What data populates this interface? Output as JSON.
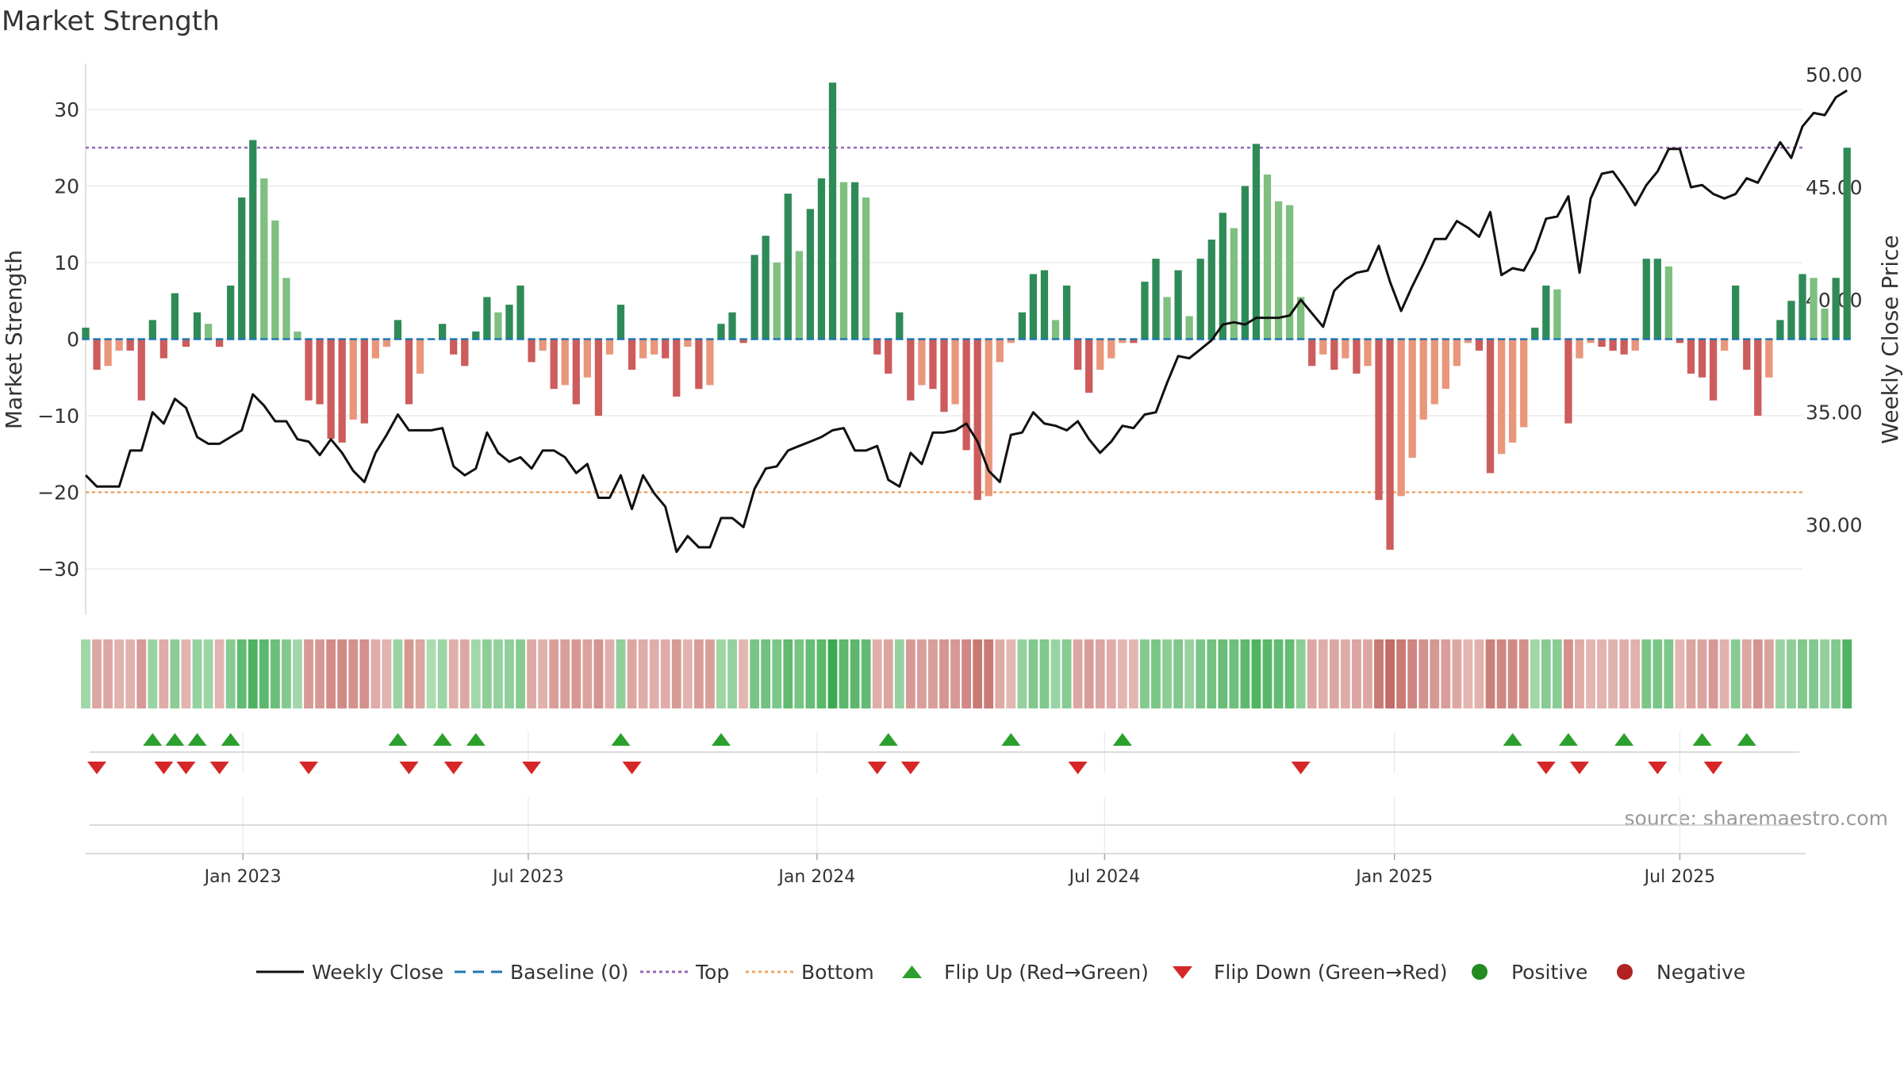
{
  "chart_data": {
    "type": "bar",
    "title": "Market Strength",
    "ylabel": "Market Strength",
    "y2label": "Weekly Close Price",
    "ylim": [
      -36,
      36
    ],
    "y2lim": [
      26.0,
      50.5
    ],
    "yticks": [
      30,
      20,
      10,
      0,
      -10,
      -20,
      -30
    ],
    "yticklabels": [
      "30",
      "20",
      "10",
      "0",
      "−10",
      "−20",
      "−30"
    ],
    "y2ticks": [
      50,
      45,
      40,
      35,
      30
    ],
    "y2ticklabels": [
      "50.00",
      "45.00",
      "40.00",
      "35.00",
      "30.00"
    ],
    "xdomain": [
      0,
      154
    ],
    "xticks": [
      14.1,
      39.7,
      65.6,
      91.4,
      117.4,
      143.0
    ],
    "xticklabels": [
      "Jan 2023",
      "Jul 2023",
      "Jan 2024",
      "Jul 2024",
      "Jan 2025",
      "Jul 2025"
    ],
    "top_line": 25,
    "bottom_line": -20,
    "source_text": "source: sharemaestro.com",
    "series": [
      {
        "name": "Market Strength",
        "values": [
          1.5,
          -4,
          -3.5,
          -1.5,
          -1.5,
          -8,
          2.5,
          -2.5,
          6,
          -1,
          3.5,
          2,
          -1,
          7,
          18.5,
          26,
          21,
          15.5,
          8,
          1,
          -8,
          -8.5,
          -13,
          -13.5,
          -10.5,
          -11,
          -2.5,
          -1,
          2.5,
          -8.5,
          -4.5,
          0,
          2,
          -2,
          -3.5,
          1,
          5.5,
          3.5,
          4.5,
          7,
          -3,
          -1.5,
          -6.5,
          -6,
          -8.5,
          -5,
          -10,
          -2,
          4.5,
          -4,
          -2.5,
          -2,
          -2.5,
          -7.5,
          -1,
          -6.5,
          -6,
          2,
          3.5,
          -0.5,
          11,
          13.5,
          10,
          19,
          11.5,
          17,
          21,
          33.5,
          20.5,
          20.5,
          18.5,
          -2,
          -4.5,
          3.5,
          -8,
          -6,
          -6.5,
          -9.5,
          -8.5,
          -14.5,
          -21,
          -20.5,
          -3,
          -0.5,
          3.5,
          8.5,
          9,
          2.5,
          7,
          -4,
          -7,
          -4,
          -2.5,
          -0.5,
          -0.5,
          7.5,
          10.5,
          5.5,
          9,
          3,
          10.5,
          13,
          16.5,
          14.5,
          20,
          25.5,
          21.5,
          18,
          17.5,
          5.5,
          -3.5,
          -2,
          -4,
          -2.5,
          -4.5,
          -3.5,
          -21,
          -27.5,
          -20.5,
          -15.5,
          -10.5,
          -8.5,
          -6.5,
          -3.5,
          -0.5,
          -1.5,
          -17.5,
          -15,
          -13.5,
          -11.5,
          1.5,
          7,
          6.5,
          -11,
          -2.5,
          -0.5,
          -1,
          -1.5,
          -2,
          -1.5,
          10.5,
          10.5,
          9.5,
          -0.5,
          -4.5,
          -5,
          -8,
          -1.5,
          7,
          -4,
          -10,
          -5,
          2.5,
          5,
          8.5,
          8,
          4,
          8,
          25
        ]
      },
      {
        "name": "Weekly Close",
        "values": [
          32.2,
          31.7,
          31.7,
          31.7,
          33.3,
          33.3,
          35.0,
          34.5,
          35.6,
          35.2,
          33.9,
          33.6,
          33.6,
          33.9,
          34.2,
          35.8,
          35.3,
          34.6,
          34.6,
          33.8,
          33.7,
          33.1,
          33.8,
          33.2,
          32.4,
          31.9,
          33.2,
          34.0,
          34.9,
          34.2,
          34.2,
          34.2,
          34.3,
          32.6,
          32.2,
          32.5,
          34.1,
          33.2,
          32.8,
          33.0,
          32.5,
          33.3,
          33.3,
          33.0,
          32.3,
          32.7,
          31.2,
          31.2,
          32.2,
          30.7,
          32.2,
          31.4,
          30.8,
          28.8,
          29.5,
          29.0,
          29.0,
          30.3,
          30.3,
          29.9,
          31.6,
          32.5,
          32.6,
          33.3,
          33.5,
          33.7,
          33.9,
          34.2,
          34.3,
          33.3,
          33.3,
          33.5,
          32.0,
          31.7,
          33.2,
          32.7,
          34.1,
          34.1,
          34.2,
          34.5,
          33.7,
          32.4,
          31.9,
          34.0,
          34.1,
          35.0,
          34.5,
          34.4,
          34.2,
          34.6,
          33.8,
          33.2,
          33.7,
          34.4,
          34.3,
          34.9,
          35.0,
          36.3,
          37.5,
          37.4,
          37.8,
          38.2,
          38.9,
          39.0,
          38.9,
          39.2,
          39.2,
          39.2,
          39.3,
          40.0,
          39.4,
          38.8,
          40.4,
          40.9,
          41.2,
          41.3,
          42.4,
          40.8,
          39.5,
          40.6,
          41.6,
          42.7,
          42.7,
          43.5,
          43.2,
          42.8,
          43.9,
          41.1,
          41.4,
          41.3,
          42.2,
          43.6,
          43.7,
          44.6,
          41.2,
          44.5,
          45.6,
          45.7,
          45.0,
          44.2,
          45.1,
          45.7,
          46.7,
          46.7,
          45.0,
          45.1,
          44.7,
          44.5,
          44.7,
          45.4,
          45.2,
          46.1,
          47.0,
          46.3,
          47.7,
          48.3,
          48.2,
          49.0,
          49.3
        ]
      },
      {
        "name": "Baseline (0)",
        "values": [
          0
        ]
      }
    ],
    "flip_up_indices": [
      6,
      8,
      10,
      13,
      28,
      32,
      35,
      48,
      57,
      72,
      83,
      93,
      128,
      133,
      138,
      145,
      149
    ],
    "flip_down_indices": [
      1,
      7,
      9,
      12,
      20,
      29,
      33,
      40,
      49,
      71,
      74,
      89,
      109,
      131,
      134,
      141,
      146
    ],
    "legend": [
      "Weekly Close",
      "Baseline (0)",
      "Top",
      "Bottom",
      "Flip Up (Red→Green)",
      "Flip Down (Green→Red)",
      "Positive",
      "Negative"
    ],
    "colors": {
      "pos_strong": "#2e8b57",
      "pos_light": "#7fbf7f",
      "neg_strong": "#cd5c5c",
      "neg_light": "#e9967a",
      "close": "#111111",
      "baseline": "#1f77b4",
      "top": "#9467bd",
      "bottom": "#f4a460",
      "flip_up": "#2ca02c",
      "flip_down": "#d62728",
      "positive_dot": "#228b22",
      "negative_dot": "#b22222"
    }
  }
}
